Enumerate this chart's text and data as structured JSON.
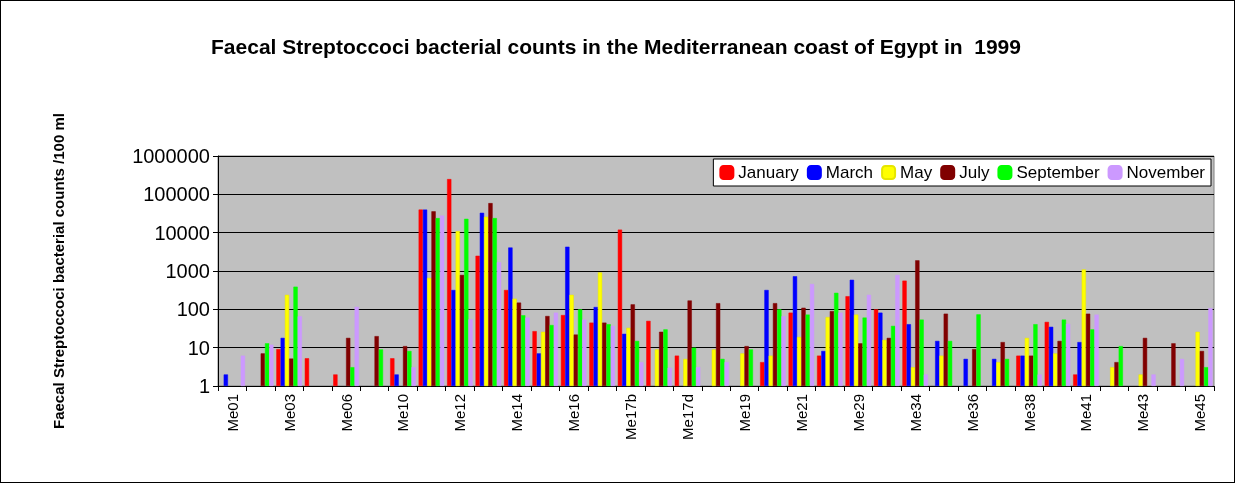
{
  "chart_data": {
    "type": "bar",
    "title": "Faecal Streptoccoci bacterial counts in the Mediterranean coast of Egypt in  1999",
    "ylabel": "Faecal Streptoccoci bacterial counts /100 ml",
    "categories": [
      "Me01",
      null,
      "Me03",
      null,
      "Me06",
      null,
      "Me10",
      null,
      "Me12",
      null,
      "Me14",
      null,
      "Me16",
      null,
      "Me17b",
      null,
      "Me17d",
      null,
      "Me19",
      null,
      "Me21",
      null,
      "Me29",
      null,
      "Me34",
      null,
      "Me36",
      null,
      "Me38",
      null,
      "Me41",
      null,
      "Me43",
      null,
      "Me45"
    ],
    "series": [
      {
        "name": "January",
        "color": "#ff0000",
        "values": [
          null,
          null,
          9.2,
          5.3,
          2,
          null,
          5.3,
          40000,
          250000,
          2500,
          320,
          27,
          71,
          45,
          12000,
          50,
          6.2,
          null,
          null,
          4.2,
          82,
          6.2,
          220,
          100,
          560,
          null,
          null,
          null,
          6.2,
          47,
          2,
          null,
          null,
          null,
          null
        ]
      },
      {
        "name": "March",
        "color": "#0000ff",
        "values": [
          2,
          null,
          18,
          null,
          null,
          null,
          2,
          40000,
          320,
          33000,
          4100,
          7.1,
          4300,
          115,
          23,
          null,
          null,
          null,
          null,
          320,
          730,
          8.2,
          590,
          82,
          41,
          15,
          5.1,
          5.1,
          6.2,
          35,
          14,
          null,
          null,
          null,
          null
        ]
      },
      {
        "name": "May",
        "color": "#ffff00",
        "values": [
          null,
          null,
          240,
          null,
          null,
          null,
          null,
          660,
          11000,
          26000,
          190,
          26,
          240,
          920,
          33,
          9,
          5.1,
          9,
          7.1,
          6.2,
          19,
          63,
          73,
          16,
          3.1,
          6.2,
          null,
          4.2,
          18,
          7.1,
          1100,
          3.1,
          2,
          null,
          26
        ]
      },
      {
        "name": "July",
        "color": "#800000",
        "values": [
          null,
          7.1,
          5.2,
          null,
          18,
          20,
          11,
          36000,
          790,
          59000,
          150,
          67,
          22,
          45,
          135,
          26,
          170,
          145,
          11,
          145,
          110,
          90,
          13,
          18,
          1900,
          77,
          9.2,
          14,
          6.2,
          15,
          77,
          4.2,
          18,
          13,
          8.2
        ]
      },
      {
        "name": "September",
        "color": "#00ff00",
        "values": [
          null,
          13,
          390,
          null,
          3.1,
          9,
          8.2,
          24000,
          23000,
          24000,
          70,
          39,
          100,
          41,
          15,
          30,
          10,
          5.1,
          9,
          100,
          73,
          270,
          61,
          37,
          54,
          15,
          74,
          5.1,
          41,
          54,
          30,
          11,
          null,
          null,
          3.1
        ]
      },
      {
        "name": "November",
        "color": "#cc99ff",
        "values": [
          6.2,
          12,
          66,
          null,
          117,
          null,
          3.1,
          28000,
          55,
          1700,
          61,
          82,
          54,
          37,
          4.2,
          3,
          3.1,
          4.2,
          null,
          66,
          460,
          82,
          240,
          790,
          2,
          null,
          null,
          null,
          2,
          42,
          73,
          null,
          2,
          5.1,
          108
        ]
      }
    ],
    "log": true,
    "ylim": [
      1,
      1000000
    ],
    "yticks": [
      1,
      10,
      100,
      1000,
      10000,
      100000,
      1000000
    ],
    "grid": "y",
    "legend": "top right"
  }
}
